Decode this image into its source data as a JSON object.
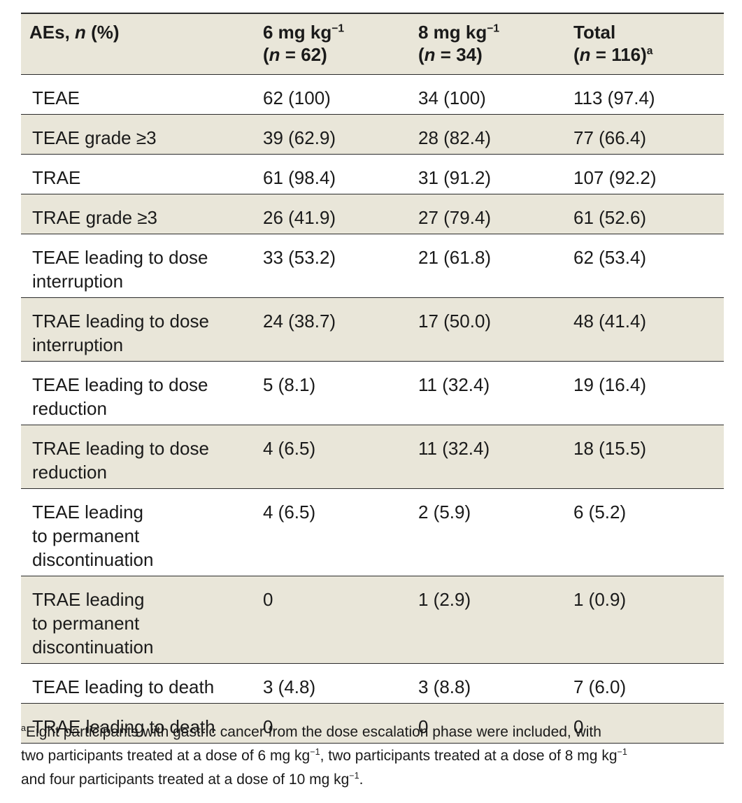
{
  "table": {
    "headers": [
      {
        "line1_a": "AEs, ",
        "line1_italic": "n",
        "line1_b": " (%)",
        "line2_a": "",
        "line2_italic": "",
        "line2_b": "",
        "sup": ""
      },
      {
        "line1_a": "6 mg kg",
        "line1_sup": "−1",
        "line2_a": "(",
        "line2_italic": "n",
        "line2_b": " = 62)",
        "sup": ""
      },
      {
        "line1_a": "8 mg kg",
        "line1_sup": "−1",
        "line2_a": "(",
        "line2_italic": "n",
        "line2_b": " = 34)",
        "sup": ""
      },
      {
        "line1_a": "Total",
        "line1_sup": "",
        "line2_a": "(",
        "line2_italic": "n",
        "line2_b": " = 116)",
        "sup": "a"
      }
    ],
    "rows": [
      {
        "label": [
          "TEAE"
        ],
        "c1": "62 (100)",
        "c2": "34 (100)",
        "c3": "113 (97.4)"
      },
      {
        "label": [
          "TEAE grade ≥3"
        ],
        "c1": "39 (62.9)",
        "c2": "28 (82.4)",
        "c3": "77 (66.4)"
      },
      {
        "label": [
          "TRAE"
        ],
        "c1": "61 (98.4)",
        "c2": "31 (91.2)",
        "c3": "107 (92.2)"
      },
      {
        "label": [
          "TRAE grade ≥3"
        ],
        "c1": "26 (41.9)",
        "c2": "27 (79.4)",
        "c3": "61 (52.6)"
      },
      {
        "label": [
          "TEAE leading to dose",
          "interruption"
        ],
        "c1": "33 (53.2)",
        "c2": "21 (61.8)",
        "c3": "62 (53.4)"
      },
      {
        "label": [
          "TRAE leading to dose",
          "interruption"
        ],
        "c1": "24 (38.7)",
        "c2": "17 (50.0)",
        "c3": "48 (41.4)"
      },
      {
        "label": [
          "TEAE leading to dose",
          "reduction"
        ],
        "c1": "5 (8.1)",
        "c2": "11 (32.4)",
        "c3": "19 (16.4)"
      },
      {
        "label": [
          "TRAE leading to dose",
          "reduction"
        ],
        "c1": "4 (6.5)",
        "c2": "11 (32.4)",
        "c3": "18 (15.5)"
      },
      {
        "label": [
          "TEAE leading",
          "to permanent",
          "discontinuation"
        ],
        "c1": "4 (6.5)",
        "c2": "2 (5.9)",
        "c3": "6 (5.2)"
      },
      {
        "label": [
          "TRAE leading",
          "to permanent",
          "discontinuation"
        ],
        "c1": "0",
        "c2": "1 (2.9)",
        "c3": "1 (0.9)"
      },
      {
        "label": [
          "TEAE leading to death"
        ],
        "c1": "3 (4.8)",
        "c2": "3 (8.8)",
        "c3": "7 (6.0)"
      },
      {
        "label": [
          "TRAE leading to death"
        ],
        "c1": "0",
        "c2": "0",
        "c3": "0"
      }
    ]
  },
  "footnote": {
    "marker": "a",
    "line1": "Eight participants with gastric cancer from the dose escalation phase were included, with",
    "line2_a": "two participants treated at a dose of 6 mg kg",
    "line2_sup1": "−1",
    "line2_b": ", two participants treated at a dose of 8 mg kg",
    "line2_sup2": "−1",
    "line3_a": "and four participants treated at a dose of 10 mg kg",
    "line3_sup": "−1",
    "line3_b": "."
  },
  "colors": {
    "header_bg": "#e9e6d9",
    "stripe_bg": "#e9e6d9",
    "rule": "#2b2b2b",
    "text": "#1a1a1a"
  }
}
